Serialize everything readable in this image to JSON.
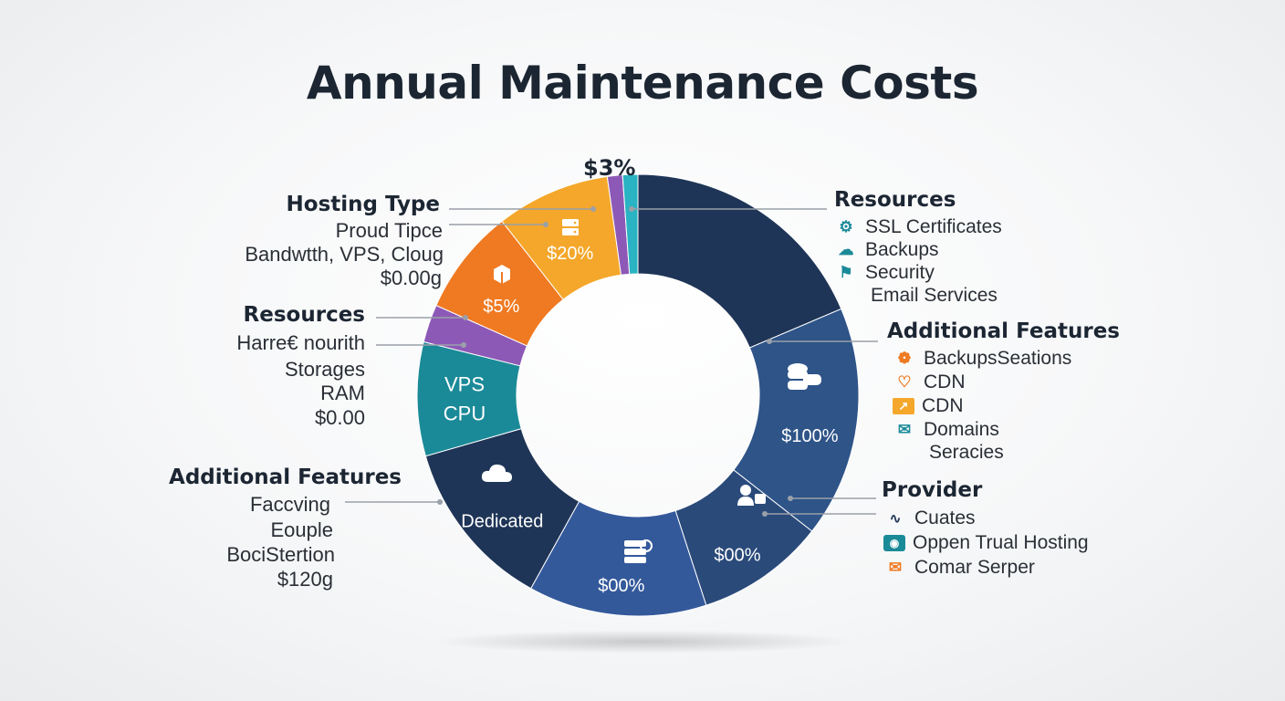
{
  "title": "Annual Maintenance Costs",
  "chart_data": {
    "type": "pie",
    "style": "donut",
    "title": "Annual Maintenance Costs",
    "slices": [
      {
        "label": "",
        "value_label": "",
        "color": "#1f3557",
        "start_deg": 0,
        "end_deg": 67
      },
      {
        "label": "",
        "value_label": "$100%",
        "color": "#2e5488",
        "start_deg": 67,
        "end_deg": 128
      },
      {
        "label": "",
        "value_label": "$00%",
        "color": "#2a4a7a",
        "start_deg": 128,
        "end_deg": 162
      },
      {
        "label": "",
        "value_label": "$00%",
        "color": "#34599b",
        "start_deg": 162,
        "end_deg": 209
      },
      {
        "label": "Dedicated",
        "value_label": "Dedicated",
        "color": "#1f3557",
        "start_deg": 209,
        "end_deg": 254
      },
      {
        "label": "VPS CPU",
        "value_label": "VPS CPU",
        "color": "#1b8a98",
        "start_deg": 254,
        "end_deg": 284
      },
      {
        "label": "",
        "value_label": "",
        "color": "#8d59b7",
        "start_deg": 284,
        "end_deg": 294
      },
      {
        "label": "",
        "value_label": "$5%",
        "color": "#ef7a22",
        "start_deg": 294,
        "end_deg": 322
      },
      {
        "label": "",
        "value_label": "$20%",
        "color": "#f4a72a",
        "start_deg": 322,
        "end_deg": 352
      },
      {
        "label": "",
        "value_label": "",
        "color": "#8d59b7",
        "start_deg": 352,
        "end_deg": 356
      },
      {
        "label": "",
        "value_label": "",
        "color": "#2ab3c2",
        "start_deg": 356,
        "end_deg": 360
      }
    ],
    "top_label": "$3%"
  },
  "left": {
    "hosting": {
      "heading": "Hosting Type",
      "items": [
        "Proud Tipce",
        "Bandwtth, VPS, Cloug",
        "$0.00g"
      ]
    },
    "resources": {
      "heading": "Resources",
      "items": [
        "Harre€ nourith",
        "Storages",
        "RAM",
        "$0.00"
      ]
    },
    "features": {
      "heading": "Additional Features",
      "items": [
        "Faccving",
        "Eouple",
        "BociStertion",
        "$120g"
      ]
    }
  },
  "right": {
    "resources": {
      "heading": "Resources",
      "items": [
        {
          "icon": "ssl-icon",
          "text": "SSL Certificates",
          "color": "#1b8a98"
        },
        {
          "icon": "cloud-icon",
          "text": "Backups",
          "color": "#1b8a98"
        },
        {
          "icon": "security-icon",
          "text": "Security",
          "color": "#1b8a98"
        },
        {
          "icon": "",
          "text": "Email Services",
          "color": ""
        }
      ]
    },
    "features": {
      "heading": "Additional Features",
      "items": [
        {
          "icon": "backup-icon",
          "text": "BackupsSeations",
          "color": "#ef7a22"
        },
        {
          "icon": "heart-icon",
          "text": "CDN",
          "color": "#ef7a22"
        },
        {
          "icon": "chart-icon",
          "text": "CDN",
          "color": "#f4a72a"
        },
        {
          "icon": "mail-icon",
          "text": "Domains",
          "color": "#1b8a98"
        },
        {
          "icon": "",
          "text": "Seracies",
          "color": ""
        }
      ]
    },
    "provider": {
      "heading": "Provider",
      "items": [
        {
          "icon": "trend-icon",
          "text": "Cuates",
          "color": "#1f3557"
        },
        {
          "icon": "camera-icon",
          "text": "Oppen Trual Hosting",
          "color": "#1b8a98"
        },
        {
          "icon": "envelope-icon",
          "text": "Comar Serper",
          "color": "#ef7a22"
        }
      ]
    }
  }
}
